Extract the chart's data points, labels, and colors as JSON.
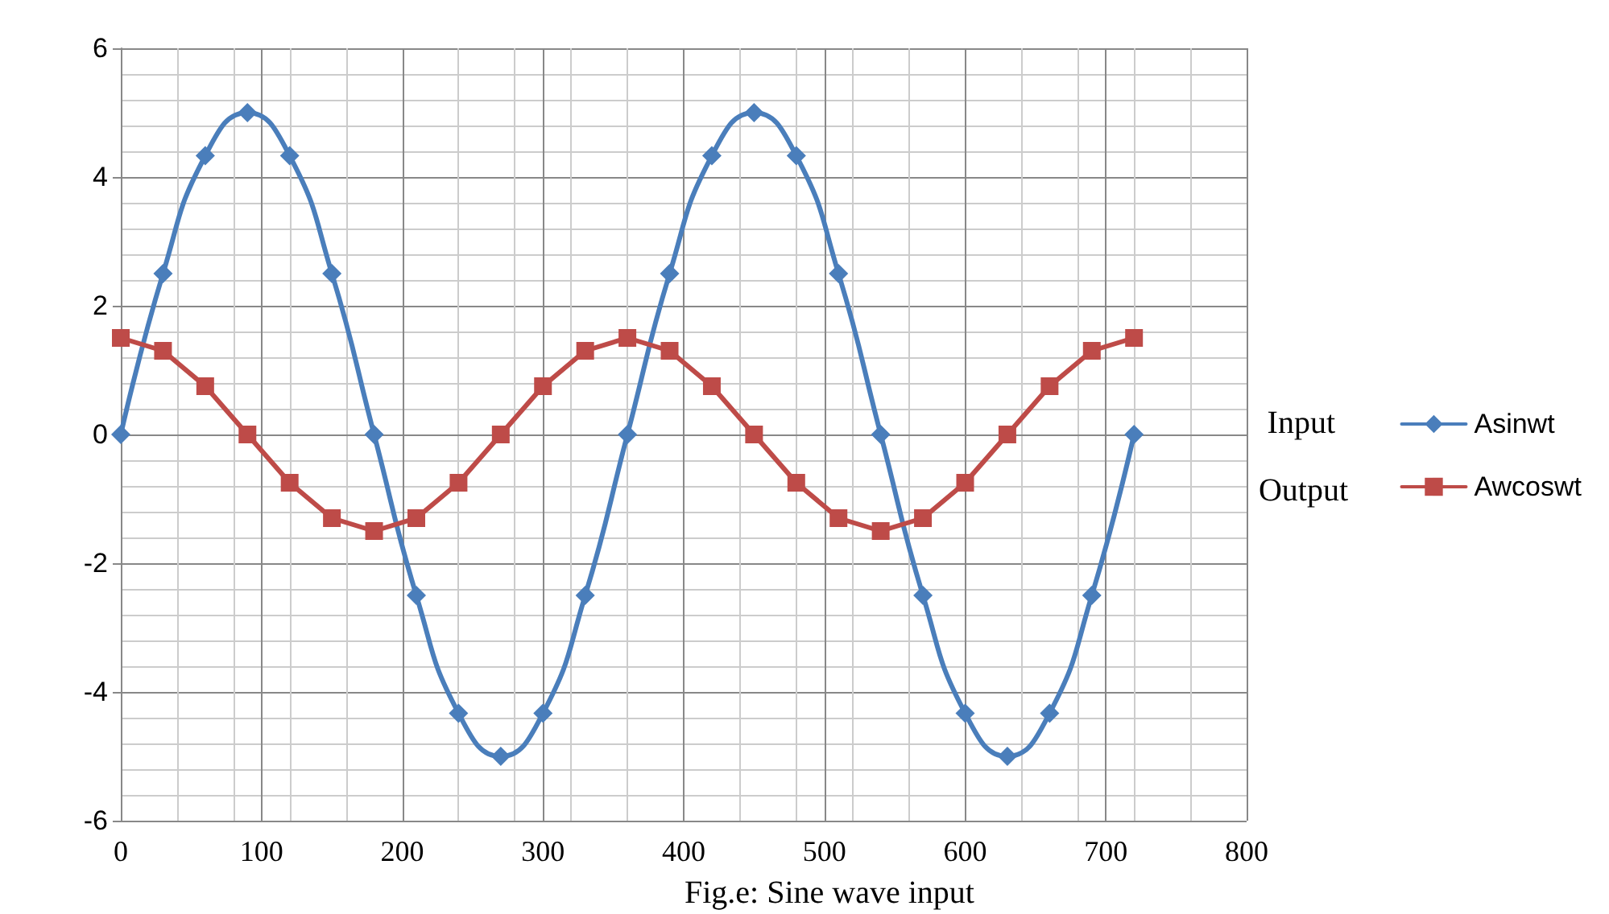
{
  "chart_data": {
    "type": "line",
    "title": "Fig.e: Sine wave input",
    "x": [
      0,
      30,
      60,
      90,
      120,
      150,
      180,
      210,
      240,
      270,
      300,
      330,
      360,
      390,
      420,
      450,
      480,
      510,
      540,
      570,
      600,
      630,
      660,
      690,
      720
    ],
    "series": [
      {
        "name": "Asinwt",
        "color": "#4a7ebb",
        "marker": "diamond",
        "values": [
          0,
          2.5,
          4.33,
          5,
          4.33,
          2.5,
          0,
          -2.5,
          -4.33,
          -5,
          -4.33,
          -2.5,
          0,
          2.5,
          4.33,
          5,
          4.33,
          2.5,
          0,
          -2.5,
          -4.33,
          -5,
          -4.33,
          -2.5,
          0
        ]
      },
      {
        "name": "Awcoswt",
        "color": "#be4b48",
        "marker": "square",
        "values": [
          1.5,
          1.3,
          0.75,
          0,
          -0.75,
          -1.3,
          -1.5,
          -1.3,
          -0.75,
          0,
          0.75,
          1.3,
          1.5,
          1.3,
          0.75,
          0,
          -0.75,
          -1.3,
          -1.5,
          -1.3,
          -0.75,
          0,
          0.75,
          1.3,
          1.5
        ]
      }
    ],
    "xlim": [
      0,
      800
    ],
    "xticks": [
      0,
      100,
      200,
      300,
      400,
      500,
      600,
      700,
      800
    ],
    "ylim": [
      -6,
      6
    ],
    "yticks": [
      -6,
      -4,
      -2,
      0,
      2,
      4,
      6
    ],
    "grid": true,
    "legend": "right",
    "line_style": "solid",
    "annotations": [
      "Input",
      "Output"
    ]
  }
}
